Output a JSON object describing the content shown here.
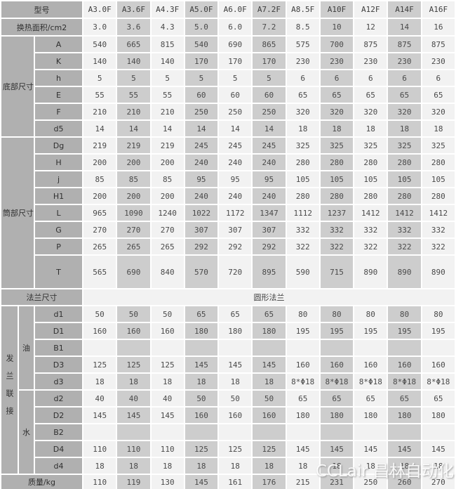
{
  "colors": {
    "label_bg": "#b0b0b0",
    "column_light": "#f2f2f2",
    "column_dark": "#cdcdcd",
    "gridline": "#ffffff",
    "text": "#4a4a4a"
  },
  "watermark": {
    "text": "CCLair 昌林自动化"
  },
  "chart_data": {
    "type": "table",
    "header_label": "型号",
    "columns": [
      "A3.0F",
      "A3.6F",
      "A4.3F",
      "A5.0F",
      "A6.0F",
      "A7.2F",
      "A8.5F",
      "A10F",
      "A12F",
      "A14F",
      "A16F"
    ],
    "rows": [
      {
        "header": true,
        "label_full": "型号",
        "values_from": "columns"
      },
      {
        "label_full": "换热面积/cm2",
        "values": [
          "3.0",
          "3.6",
          "4.3",
          "5.0",
          "6.0",
          "7.2",
          "8.5",
          "10",
          "12",
          "14",
          "16"
        ]
      },
      {
        "group": {
          "text": "底部尺寸",
          "rowspan": 6,
          "colspan": 2
        },
        "sub": "A",
        "values": [
          "540",
          "665",
          "815",
          "540",
          "690",
          "865",
          "575",
          "700",
          "875",
          "875",
          "875"
        ]
      },
      {
        "sub": "K",
        "values": [
          "140",
          "140",
          "140",
          "170",
          "170",
          "170",
          "230",
          "230",
          "230",
          "230",
          "230"
        ]
      },
      {
        "sub": "h",
        "values": [
          "5",
          "5",
          "5",
          "5",
          "5",
          "5",
          "6",
          "6",
          "6",
          "6",
          "6"
        ]
      },
      {
        "sub": "E",
        "values": [
          "55",
          "55",
          "55",
          "60",
          "60",
          "60",
          "65",
          "65",
          "65",
          "65",
          "65"
        ]
      },
      {
        "sub": "F",
        "values": [
          "210",
          "210",
          "210",
          "250",
          "250",
          "250",
          "320",
          "320",
          "320",
          "320",
          "320"
        ]
      },
      {
        "sub": "d5",
        "values": [
          "14",
          "14",
          "14",
          "14",
          "14",
          "14",
          "18",
          "18",
          "18",
          "18",
          "18"
        ]
      },
      {
        "group": {
          "text": "筒部尺寸",
          "rowspan": 8,
          "colspan": 2
        },
        "sub": "Dg",
        "values": [
          "219",
          "219",
          "219",
          "245",
          "245",
          "245",
          "325",
          "325",
          "325",
          "325",
          "325"
        ]
      },
      {
        "sub": "H",
        "values": [
          "200",
          "200",
          "200",
          "240",
          "240",
          "240",
          "280",
          "280",
          "280",
          "280",
          "280"
        ]
      },
      {
        "sub": "j",
        "values": [
          "85",
          "85",
          "85",
          "95",
          "95",
          "95",
          "105",
          "105",
          "105",
          "105",
          "105"
        ]
      },
      {
        "sub": "H1",
        "values": [
          "200",
          "200",
          "200",
          "240",
          "240",
          "240",
          "280",
          "280",
          "280",
          "280",
          "280"
        ]
      },
      {
        "sub": "L",
        "values": [
          "965",
          "1090",
          "1240",
          "1022",
          "1172",
          "1347",
          "1112",
          "1237",
          "1412",
          "1412",
          "1412"
        ]
      },
      {
        "sub": "G",
        "values": [
          "270",
          "270",
          "270",
          "307",
          "307",
          "307",
          "332",
          "332",
          "332",
          "332",
          "332"
        ]
      },
      {
        "sub": "P",
        "values": [
          "265",
          "265",
          "265",
          "292",
          "292",
          "292",
          "322",
          "322",
          "322",
          "322",
          "322"
        ]
      },
      {
        "sub": "T",
        "values": [
          "565",
          "690",
          "840",
          "570",
          "720",
          "895",
          "590",
          "715",
          "890",
          "890",
          "890"
        ]
      },
      {
        "label_full": "法兰尺寸",
        "merged": "圆形法兰"
      },
      {
        "outer": {
          "text": "发兰联接",
          "rowspan": 10
        },
        "group": {
          "text": "油",
          "rowspan": 5
        },
        "sub": "d1",
        "values": [
          "50",
          "50",
          "50",
          "65",
          "65",
          "65",
          "80",
          "80",
          "80",
          "80",
          "80"
        ]
      },
      {
        "sub": "D1",
        "values": [
          "160",
          "160",
          "160",
          "180",
          "180",
          "180",
          "195",
          "195",
          "195",
          "195",
          "195"
        ]
      },
      {
        "sub": "B1",
        "values": [
          "",
          "",
          "",
          "",
          "",
          "",
          "",
          "",
          "",
          "",
          ""
        ]
      },
      {
        "sub": "D3",
        "values": [
          "125",
          "125",
          "125",
          "145",
          "145",
          "145",
          "160",
          "160",
          "160",
          "160",
          "160"
        ]
      },
      {
        "sub": "d3",
        "values": [
          "18",
          "18",
          "18",
          "18",
          "18",
          "18",
          "8*Φ18",
          "8*Φ18",
          "8*Φ18",
          "8*Φ18",
          "8*Φ18"
        ]
      },
      {
        "group": {
          "text": "水",
          "rowspan": 5
        },
        "sub": "d2",
        "values": [
          "40",
          "40",
          "40",
          "50",
          "50",
          "50",
          "65",
          "65",
          "65",
          "65",
          "65"
        ]
      },
      {
        "sub": "D2",
        "values": [
          "145",
          "145",
          "145",
          "160",
          "160",
          "160",
          "180",
          "180",
          "180",
          "180",
          "180"
        ]
      },
      {
        "sub": "B2",
        "values": [
          "",
          "",
          "",
          "",
          "",
          "",
          "",
          "",
          "",
          "",
          ""
        ]
      },
      {
        "sub": "D4",
        "values": [
          "110",
          "110",
          "110",
          "125",
          "125",
          "125",
          "145",
          "145",
          "145",
          "145",
          "145"
        ]
      },
      {
        "sub": "d4",
        "values": [
          "18",
          "18",
          "18",
          "18",
          "18",
          "18",
          "18",
          "18",
          "18",
          "18",
          "18"
        ]
      },
      {
        "label_full": "质量/kg",
        "values": [
          "110",
          "119",
          "130",
          "145",
          "161",
          "176",
          "215",
          "231",
          "250",
          "260",
          "270"
        ]
      }
    ]
  }
}
